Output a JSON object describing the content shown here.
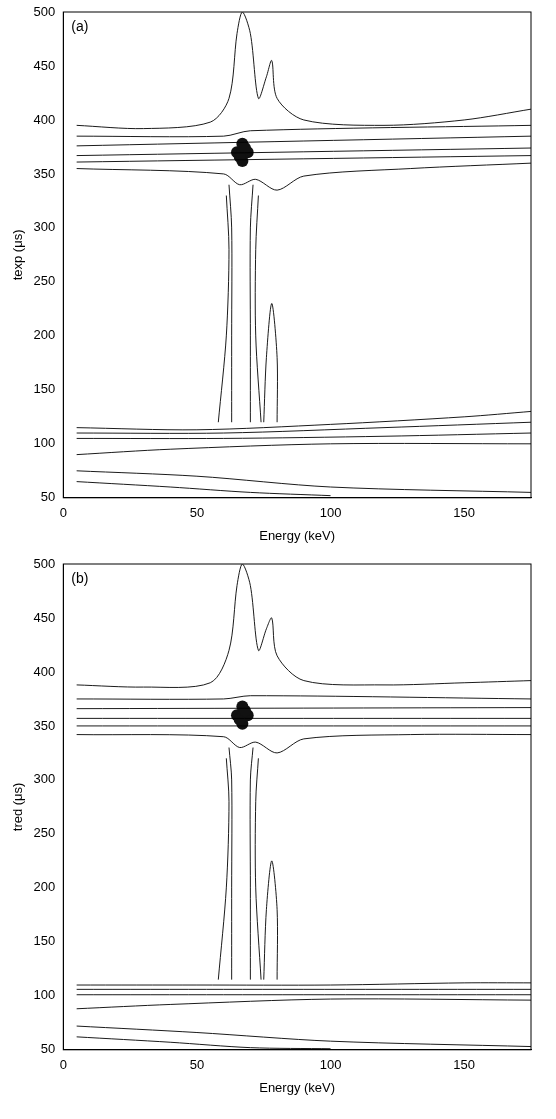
{
  "chart_data": [
    {
      "type": "line",
      "title": "(a)",
      "x_label": "Energy (keV)",
      "y_label": "texp (μs)",
      "xlim": [
        0,
        175
      ],
      "xticks": [
        0,
        50,
        100,
        150
      ],
      "ylim": [
        50,
        500
      ],
      "yticks": [
        50,
        100,
        150,
        200,
        250,
        300,
        350,
        400,
        450,
        500
      ],
      "grid": false,
      "series": [
        {
          "color": "#000000",
          "line_style": "solid",
          "x": [
            5,
            30,
            55,
            62,
            65,
            67,
            70,
            73,
            76,
            78,
            80,
            90,
            120,
            150,
            175
          ],
          "y": [
            395,
            392,
            398,
            420,
            480,
            500,
            480,
            420,
            440,
            455,
            420,
            400,
            395,
            400,
            410
          ]
        },
        {
          "color": "#000000",
          "line_style": "solid",
          "x": [
            5,
            60,
            66,
            72,
            80,
            90,
            130,
            175
          ],
          "y": [
            355,
            350,
            340,
            345,
            335,
            348,
            355,
            360
          ]
        },
        {
          "color": "#000000",
          "line_style": "solid",
          "x": [
            5,
            60,
            70,
            175
          ],
          "y": [
            385,
            385,
            390,
            395
          ]
        },
        {
          "color": "#000000",
          "line_style": "solid",
          "x": [
            5,
            175
          ],
          "y": [
            376,
            385
          ]
        },
        {
          "color": "#000000",
          "line_style": "solid",
          "x": [
            5,
            175
          ],
          "y": [
            367,
            374
          ]
        },
        {
          "color": "#000000",
          "line_style": "solid",
          "x": [
            5,
            175
          ],
          "y": [
            361,
            367
          ]
        },
        {
          "color": "#000000",
          "line_style": "solid",
          "x": [
            58,
            61,
            62,
            61
          ],
          "y": [
            120,
            200,
            280,
            330
          ]
        },
        {
          "color": "#000000",
          "line_style": "solid",
          "x": [
            74,
            72,
            72,
            73
          ],
          "y": [
            120,
            200,
            280,
            330
          ]
        },
        {
          "color": "#000000",
          "line_style": "solid",
          "x": [
            63,
            63,
            63,
            62
          ],
          "y": [
            120,
            200,
            300,
            340
          ]
        },
        {
          "color": "#000000",
          "line_style": "solid",
          "x": [
            70,
            70,
            70,
            71
          ],
          "y": [
            120,
            200,
            300,
            340
          ]
        },
        {
          "color": "#000000",
          "line_style": "solid",
          "x": [
            75,
            76,
            78,
            80,
            80
          ],
          "y": [
            120,
            180,
            230,
            180,
            120
          ]
        },
        {
          "color": "#000000",
          "line_style": "solid",
          "x": [
            5,
            50,
            100,
            150,
            175
          ],
          "y": [
            115,
            113,
            118,
            125,
            130
          ]
        },
        {
          "color": "#000000",
          "line_style": "solid",
          "x": [
            5,
            60,
            120,
            175
          ],
          "y": [
            110,
            110,
            115,
            120
          ]
        },
        {
          "color": "#000000",
          "line_style": "solid",
          "x": [
            5,
            60,
            120,
            175
          ],
          "y": [
            105,
            105,
            107,
            110
          ]
        },
        {
          "color": "#000000",
          "line_style": "solid",
          "x": [
            5,
            40,
            100,
            175
          ],
          "y": [
            90,
            95,
            100,
            100
          ]
        },
        {
          "color": "#000000",
          "line_style": "solid",
          "x": [
            5,
            50,
            100,
            175
          ],
          "y": [
            75,
            70,
            60,
            55
          ]
        },
        {
          "color": "#000000",
          "line_style": "solid",
          "x": [
            5,
            40,
            70,
            100
          ],
          "y": [
            65,
            60,
            55,
            52
          ]
        },
        {
          "type": "scatter",
          "marker": "circle",
          "color": "#111111",
          "x": [
            65,
            67,
            69,
            67,
            67,
            66,
            68
          ],
          "y": [
            370,
            370,
            370,
            362,
            378,
            366,
            374
          ]
        }
      ]
    },
    {
      "type": "line",
      "title": "(b)",
      "x_label": "Energy (keV)",
      "y_label": "tred (μs)",
      "xlim": [
        0,
        175
      ],
      "xticks": [
        0,
        50,
        100,
        150
      ],
      "ylim": [
        50,
        500
      ],
      "yticks": [
        50,
        100,
        150,
        200,
        250,
        300,
        350,
        400,
        450,
        500
      ],
      "grid": false,
      "series": [
        {
          "color": "#000000",
          "line_style": "solid",
          "x": [
            5,
            30,
            55,
            62,
            65,
            67,
            70,
            73,
            76,
            78,
            80,
            90,
            120,
            150,
            175
          ],
          "y": [
            388,
            386,
            390,
            420,
            480,
            500,
            480,
            420,
            440,
            450,
            415,
            392,
            388,
            390,
            392
          ]
        },
        {
          "color": "#000000",
          "line_style": "solid",
          "x": [
            5,
            60,
            66,
            72,
            80,
            90,
            130,
            175
          ],
          "y": [
            342,
            340,
            330,
            335,
            325,
            338,
            342,
            342
          ]
        },
        {
          "color": "#000000",
          "line_style": "solid",
          "x": [
            5,
            60,
            70,
            175
          ],
          "y": [
            375,
            375,
            378,
            375
          ]
        },
        {
          "color": "#000000",
          "line_style": "solid",
          "x": [
            5,
            175
          ],
          "y": [
            366,
            367
          ]
        },
        {
          "color": "#000000",
          "line_style": "solid",
          "x": [
            5,
            175
          ],
          "y": [
            357,
            357
          ]
        },
        {
          "color": "#000000",
          "line_style": "solid",
          "x": [
            5,
            175
          ],
          "y": [
            350,
            350
          ]
        },
        {
          "color": "#000000",
          "line_style": "solid",
          "x": [
            58,
            61,
            62,
            61
          ],
          "y": [
            115,
            200,
            280,
            320
          ]
        },
        {
          "color": "#000000",
          "line_style": "solid",
          "x": [
            74,
            72,
            72,
            73
          ],
          "y": [
            115,
            200,
            280,
            320
          ]
        },
        {
          "color": "#000000",
          "line_style": "solid",
          "x": [
            63,
            63,
            63,
            62
          ],
          "y": [
            115,
            200,
            300,
            330
          ]
        },
        {
          "color": "#000000",
          "line_style": "solid",
          "x": [
            70,
            70,
            70,
            71
          ],
          "y": [
            115,
            200,
            300,
            330
          ]
        },
        {
          "color": "#000000",
          "line_style": "solid",
          "x": [
            75,
            76,
            78,
            80,
            80
          ],
          "y": [
            115,
            180,
            225,
            180,
            115
          ]
        },
        {
          "color": "#000000",
          "line_style": "solid",
          "x": [
            5,
            50,
            100,
            150,
            175
          ],
          "y": [
            110,
            110,
            110,
            112,
            112
          ]
        },
        {
          "color": "#000000",
          "line_style": "solid",
          "x": [
            5,
            60,
            120,
            175
          ],
          "y": [
            106,
            106,
            106,
            106
          ]
        },
        {
          "color": "#000000",
          "line_style": "solid",
          "x": [
            5,
            60,
            120,
            175
          ],
          "y": [
            101,
            101,
            101,
            101
          ]
        },
        {
          "color": "#000000",
          "line_style": "solid",
          "x": [
            5,
            40,
            100,
            175
          ],
          "y": [
            88,
            92,
            97,
            96
          ]
        },
        {
          "color": "#000000",
          "line_style": "solid",
          "x": [
            5,
            50,
            100,
            175
          ],
          "y": [
            72,
            66,
            58,
            53
          ]
        },
        {
          "color": "#000000",
          "line_style": "solid",
          "x": [
            5,
            40,
            70,
            100
          ],
          "y": [
            62,
            57,
            52,
            51
          ]
        },
        {
          "type": "scatter",
          "marker": "circle",
          "color": "#111111",
          "x": [
            65,
            67,
            69,
            67,
            67,
            66,
            68
          ],
          "y": [
            360,
            360,
            360,
            352,
            368,
            356,
            364
          ]
        }
      ]
    }
  ]
}
